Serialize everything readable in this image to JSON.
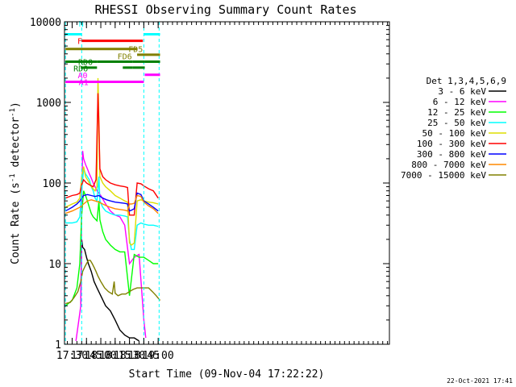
{
  "chart_data": {
    "type": "line",
    "title": "RHESSI Observing Summary Count Rates",
    "xlabel": "Start Time (09-Nov-04 17:22:22)",
    "ylabel_main": "Count Rate (s",
    "ylabel_sup": "-1",
    "ylabel_mid": " detector",
    "ylabel_end": ")",
    "y_scale": "log",
    "ylim": [
      1,
      10000
    ],
    "xlim_min": [
      1042,
      1382
    ],
    "x_ticks": [
      {
        "t": 1050,
        "label": "17:30"
      },
      {
        "t": 1065,
        "label": "17:45"
      },
      {
        "t": 1080,
        "label": "18:00"
      },
      {
        "t": 1095,
        "label": "18:15"
      },
      {
        "t": 1110,
        "label": "18:30"
      },
      {
        "t": 1125,
        "label": "18:45"
      },
      {
        "t": 1140,
        "label": "19:00"
      }
    ],
    "y_ticks": [
      {
        "v": 1,
        "label": "1"
      },
      {
        "v": 10,
        "label": "10"
      },
      {
        "v": 100,
        "label": "100"
      },
      {
        "v": 1000,
        "label": "1000"
      },
      {
        "v": 10000,
        "label": "10000"
      }
    ],
    "legend_title": "Det 1,3,4,5,6,9",
    "legend_position": "right",
    "series": [
      {
        "name": "3 - 6 keV",
        "color": "#000000",
        "points": [
          [
            1059,
            3
          ],
          [
            1060,
            20
          ],
          [
            1061,
            16
          ],
          [
            1063,
            15
          ],
          [
            1065,
            12
          ],
          [
            1067,
            10
          ],
          [
            1070,
            8
          ],
          [
            1073,
            6
          ],
          [
            1076,
            5
          ],
          [
            1080,
            4
          ],
          [
            1085,
            3
          ],
          [
            1090,
            2.6
          ],
          [
            1095,
            2
          ],
          [
            1100,
            1.5
          ],
          [
            1105,
            1.3
          ],
          [
            1110,
            1.2
          ],
          [
            1115,
            1.2
          ],
          [
            1120,
            1.1
          ]
        ]
      },
      {
        "name": "6 - 12 keV",
        "color": "#ff00ff",
        "points": [
          [
            1054,
            1.1
          ],
          [
            1057,
            2
          ],
          [
            1059,
            3
          ],
          [
            1060,
            60
          ],
          [
            1061,
            250
          ],
          [
            1062,
            200
          ],
          [
            1064,
            170
          ],
          [
            1066,
            150
          ],
          [
            1068,
            130
          ],
          [
            1070,
            115
          ],
          [
            1072,
            100
          ],
          [
            1074,
            90
          ],
          [
            1076,
            80
          ],
          [
            1078,
            75
          ],
          [
            1080,
            70
          ],
          [
            1085,
            55
          ],
          [
            1090,
            45
          ],
          [
            1095,
            40
          ],
          [
            1100,
            38
          ],
          [
            1105,
            30
          ],
          [
            1110,
            10
          ],
          [
            1115,
            12
          ],
          [
            1120,
            13
          ],
          [
            1125,
            2
          ],
          [
            1127,
            1.2
          ]
        ]
      },
      {
        "name": "12 - 25 keV",
        "color": "#00ff00",
        "points": [
          [
            1043,
            3
          ],
          [
            1050,
            3.5
          ],
          [
            1055,
            5
          ],
          [
            1058,
            10
          ],
          [
            1060,
            40
          ],
          [
            1062,
            80
          ],
          [
            1064,
            70
          ],
          [
            1066,
            60
          ],
          [
            1068,
            50
          ],
          [
            1070,
            42
          ],
          [
            1072,
            38
          ],
          [
            1074,
            36
          ],
          [
            1076,
            34
          ],
          [
            1078,
            60
          ],
          [
            1079,
            35
          ],
          [
            1082,
            25
          ],
          [
            1085,
            20
          ],
          [
            1090,
            17
          ],
          [
            1095,
            15
          ],
          [
            1100,
            14
          ],
          [
            1105,
            14
          ],
          [
            1110,
            4
          ],
          [
            1115,
            13
          ],
          [
            1120,
            12
          ],
          [
            1125,
            12
          ],
          [
            1130,
            11
          ],
          [
            1135,
            10
          ],
          [
            1140,
            10
          ]
        ]
      },
      {
        "name": "25 - 50 keV",
        "color": "#00ffff",
        "points": [
          [
            1043,
            32
          ],
          [
            1050,
            32
          ],
          [
            1055,
            33
          ],
          [
            1058,
            38
          ],
          [
            1060,
            80
          ],
          [
            1062,
            150
          ],
          [
            1064,
            130
          ],
          [
            1066,
            120
          ],
          [
            1068,
            110
          ],
          [
            1070,
            90
          ],
          [
            1072,
            80
          ],
          [
            1074,
            65
          ],
          [
            1076,
            60
          ],
          [
            1078,
            120
          ],
          [
            1079,
            60
          ],
          [
            1082,
            50
          ],
          [
            1085,
            45
          ],
          [
            1090,
            42
          ],
          [
            1095,
            40
          ],
          [
            1100,
            40
          ],
          [
            1105,
            39
          ],
          [
            1108,
            38
          ],
          [
            1110,
            20
          ],
          [
            1112,
            15
          ],
          [
            1115,
            15
          ],
          [
            1118,
            30
          ],
          [
            1122,
            32
          ],
          [
            1125,
            31
          ],
          [
            1130,
            30
          ],
          [
            1135,
            30
          ],
          [
            1140,
            29
          ]
        ]
      },
      {
        "name": "50 - 100 keV",
        "color": "#dddd00",
        "points": [
          [
            1043,
            50
          ],
          [
            1050,
            55
          ],
          [
            1055,
            58
          ],
          [
            1058,
            65
          ],
          [
            1060,
            120
          ],
          [
            1062,
            160
          ],
          [
            1064,
            120
          ],
          [
            1066,
            110
          ],
          [
            1068,
            100
          ],
          [
            1070,
            90
          ],
          [
            1074,
            80
          ],
          [
            1076,
            90
          ],
          [
            1077,
            2000
          ],
          [
            1078,
            600
          ],
          [
            1079,
            120
          ],
          [
            1082,
            100
          ],
          [
            1085,
            90
          ],
          [
            1090,
            80
          ],
          [
            1095,
            70
          ],
          [
            1100,
            65
          ],
          [
            1105,
            60
          ],
          [
            1108,
            58
          ],
          [
            1110,
            18
          ],
          [
            1112,
            17
          ],
          [
            1115,
            18
          ],
          [
            1118,
            60
          ],
          [
            1122,
            62
          ],
          [
            1125,
            60
          ],
          [
            1130,
            58
          ],
          [
            1135,
            57
          ],
          [
            1140,
            55
          ]
        ]
      },
      {
        "name": "100 - 300 keV",
        "color": "#ff0000",
        "points": [
          [
            1043,
            65
          ],
          [
            1050,
            70
          ],
          [
            1055,
            72
          ],
          [
            1058,
            75
          ],
          [
            1060,
            95
          ],
          [
            1062,
            110
          ],
          [
            1065,
            100
          ],
          [
            1068,
            95
          ],
          [
            1072,
            90
          ],
          [
            1075,
            110
          ],
          [
            1077,
            1300
          ],
          [
            1078,
            500
          ],
          [
            1079,
            150
          ],
          [
            1082,
            120
          ],
          [
            1085,
            110
          ],
          [
            1090,
            100
          ],
          [
            1095,
            95
          ],
          [
            1100,
            92
          ],
          [
            1105,
            90
          ],
          [
            1108,
            88
          ],
          [
            1110,
            40
          ],
          [
            1112,
            40
          ],
          [
            1115,
            40
          ],
          [
            1118,
            100
          ],
          [
            1122,
            98
          ],
          [
            1125,
            92
          ],
          [
            1130,
            85
          ],
          [
            1135,
            80
          ],
          [
            1140,
            65
          ]
        ]
      },
      {
        "name": "300 - 800 keV",
        "color": "#0000ff",
        "points": [
          [
            1043,
            45
          ],
          [
            1050,
            50
          ],
          [
            1055,
            55
          ],
          [
            1058,
            60
          ],
          [
            1062,
            70
          ],
          [
            1066,
            72
          ],
          [
            1070,
            70
          ],
          [
            1074,
            68
          ],
          [
            1078,
            70
          ],
          [
            1082,
            65
          ],
          [
            1086,
            62
          ],
          [
            1090,
            60
          ],
          [
            1095,
            58
          ],
          [
            1100,
            57
          ],
          [
            1105,
            56
          ],
          [
            1108,
            55
          ],
          [
            1110,
            45
          ],
          [
            1112,
            46
          ],
          [
            1115,
            48
          ],
          [
            1118,
            75
          ],
          [
            1122,
            72
          ],
          [
            1125,
            60
          ],
          [
            1130,
            55
          ],
          [
            1135,
            50
          ],
          [
            1140,
            45
          ]
        ]
      },
      {
        "name": "800 - 7000 keV",
        "color": "#ff8800",
        "points": [
          [
            1043,
            42
          ],
          [
            1050,
            45
          ],
          [
            1055,
            48
          ],
          [
            1058,
            50
          ],
          [
            1062,
            55
          ],
          [
            1066,
            60
          ],
          [
            1070,
            62
          ],
          [
            1074,
            60
          ],
          [
            1078,
            58
          ],
          [
            1082,
            55
          ],
          [
            1086,
            52
          ],
          [
            1090,
            50
          ],
          [
            1095,
            48
          ],
          [
            1100,
            47
          ],
          [
            1105,
            46
          ],
          [
            1108,
            45
          ],
          [
            1110,
            55
          ],
          [
            1112,
            55
          ],
          [
            1115,
            56
          ],
          [
            1118,
            70
          ],
          [
            1122,
            68
          ],
          [
            1125,
            58
          ],
          [
            1130,
            52
          ],
          [
            1135,
            48
          ],
          [
            1140,
            42
          ]
        ]
      },
      {
        "name": "7000 - 15000 keV",
        "color": "#808000",
        "points": [
          [
            1043,
            3.2
          ],
          [
            1048,
            3.3
          ],
          [
            1052,
            3.8
          ],
          [
            1056,
            4.5
          ],
          [
            1059,
            6
          ],
          [
            1061,
            8
          ],
          [
            1063,
            9
          ],
          [
            1065,
            10
          ],
          [
            1067,
            11
          ],
          [
            1069,
            11
          ],
          [
            1071,
            10
          ],
          [
            1073,
            9
          ],
          [
            1075,
            8
          ],
          [
            1077,
            7
          ],
          [
            1080,
            6
          ],
          [
            1084,
            5
          ],
          [
            1088,
            4.5
          ],
          [
            1092,
            4.2
          ],
          [
            1094,
            6
          ],
          [
            1095,
            4.3
          ],
          [
            1098,
            4
          ],
          [
            1102,
            4.2
          ],
          [
            1106,
            4.2
          ],
          [
            1110,
            4.5
          ],
          [
            1114,
            4.8
          ],
          [
            1118,
            5
          ],
          [
            1122,
            5
          ],
          [
            1126,
            5
          ],
          [
            1130,
            5
          ],
          [
            1134,
            4.5
          ],
          [
            1138,
            4
          ],
          [
            1142,
            3.5
          ]
        ]
      }
    ],
    "status_bars": [
      {
        "label": "N",
        "label_color": "#00ffff",
        "color": "#00ffff",
        "y": 7000,
        "label_at": [
          1059.5,
          9500
        ],
        "spans": [
          [
            1043,
            1060
          ],
          [
            1125,
            1142
          ]
        ]
      },
      {
        "label": "F",
        "label_color": "#ff0000",
        "color": "#ff0000",
        "y": 5800,
        "label_at": [
          1058,
          5800
        ],
        "spans": [
          [
            1060,
            1124
          ]
        ]
      },
      {
        "label": "FD5",
        "label_color": "#808000",
        "color": "#808000",
        "y": 4600,
        "label_at": [
          1116.5,
          4600
        ],
        "spans": [
          [
            1043,
            1118
          ]
        ]
      },
      {
        "label": "FD6",
        "label_color": "#808000",
        "color": "#808000",
        "y": 3900,
        "label_at": [
          1105,
          3750
        ],
        "spans": [
          [
            1118,
            1142
          ]
        ]
      },
      {
        "label": "RD0",
        "label_color": "#008000",
        "color": "#008000",
        "y": 3200,
        "label_at": [
          1064,
          3200
        ],
        "spans": [
          [
            1043,
            1076
          ],
          [
            1076,
            1113
          ],
          [
            1113,
            1126
          ],
          [
            1126,
            1142
          ]
        ]
      },
      {
        "label": "RD6",
        "label_color": "#008000",
        "color": "#008000",
        "y": 2700,
        "label_at": [
          1059,
          2650
        ],
        "spans": [
          [
            1059,
            1076
          ],
          [
            1103,
            1113
          ],
          [
            1113,
            1126
          ]
        ]
      },
      {
        "label": "A0",
        "label_color": "#ff00ff",
        "color": "#ff00ff",
        "y": 2200,
        "label_at": [
          1061,
          2200
        ],
        "spans": [
          [
            1126,
            1142
          ]
        ]
      },
      {
        "label": "A1",
        "label_color": "#ff00ff",
        "color": "#ff00ff",
        "y": 1800,
        "label_at": [
          1062,
          1800
        ],
        "spans": [
          [
            1043,
            1125
          ]
        ]
      }
    ],
    "vlines": [
      {
        "t": 1043,
        "color": "#00ffff"
      },
      {
        "t": 1060,
        "color": "#00ffff"
      },
      {
        "t": 1125,
        "color": "#00ffff"
      },
      {
        "t": 1141,
        "color": "#00ffff"
      }
    ],
    "footer_date": "22-Oct-2021 17:41"
  }
}
